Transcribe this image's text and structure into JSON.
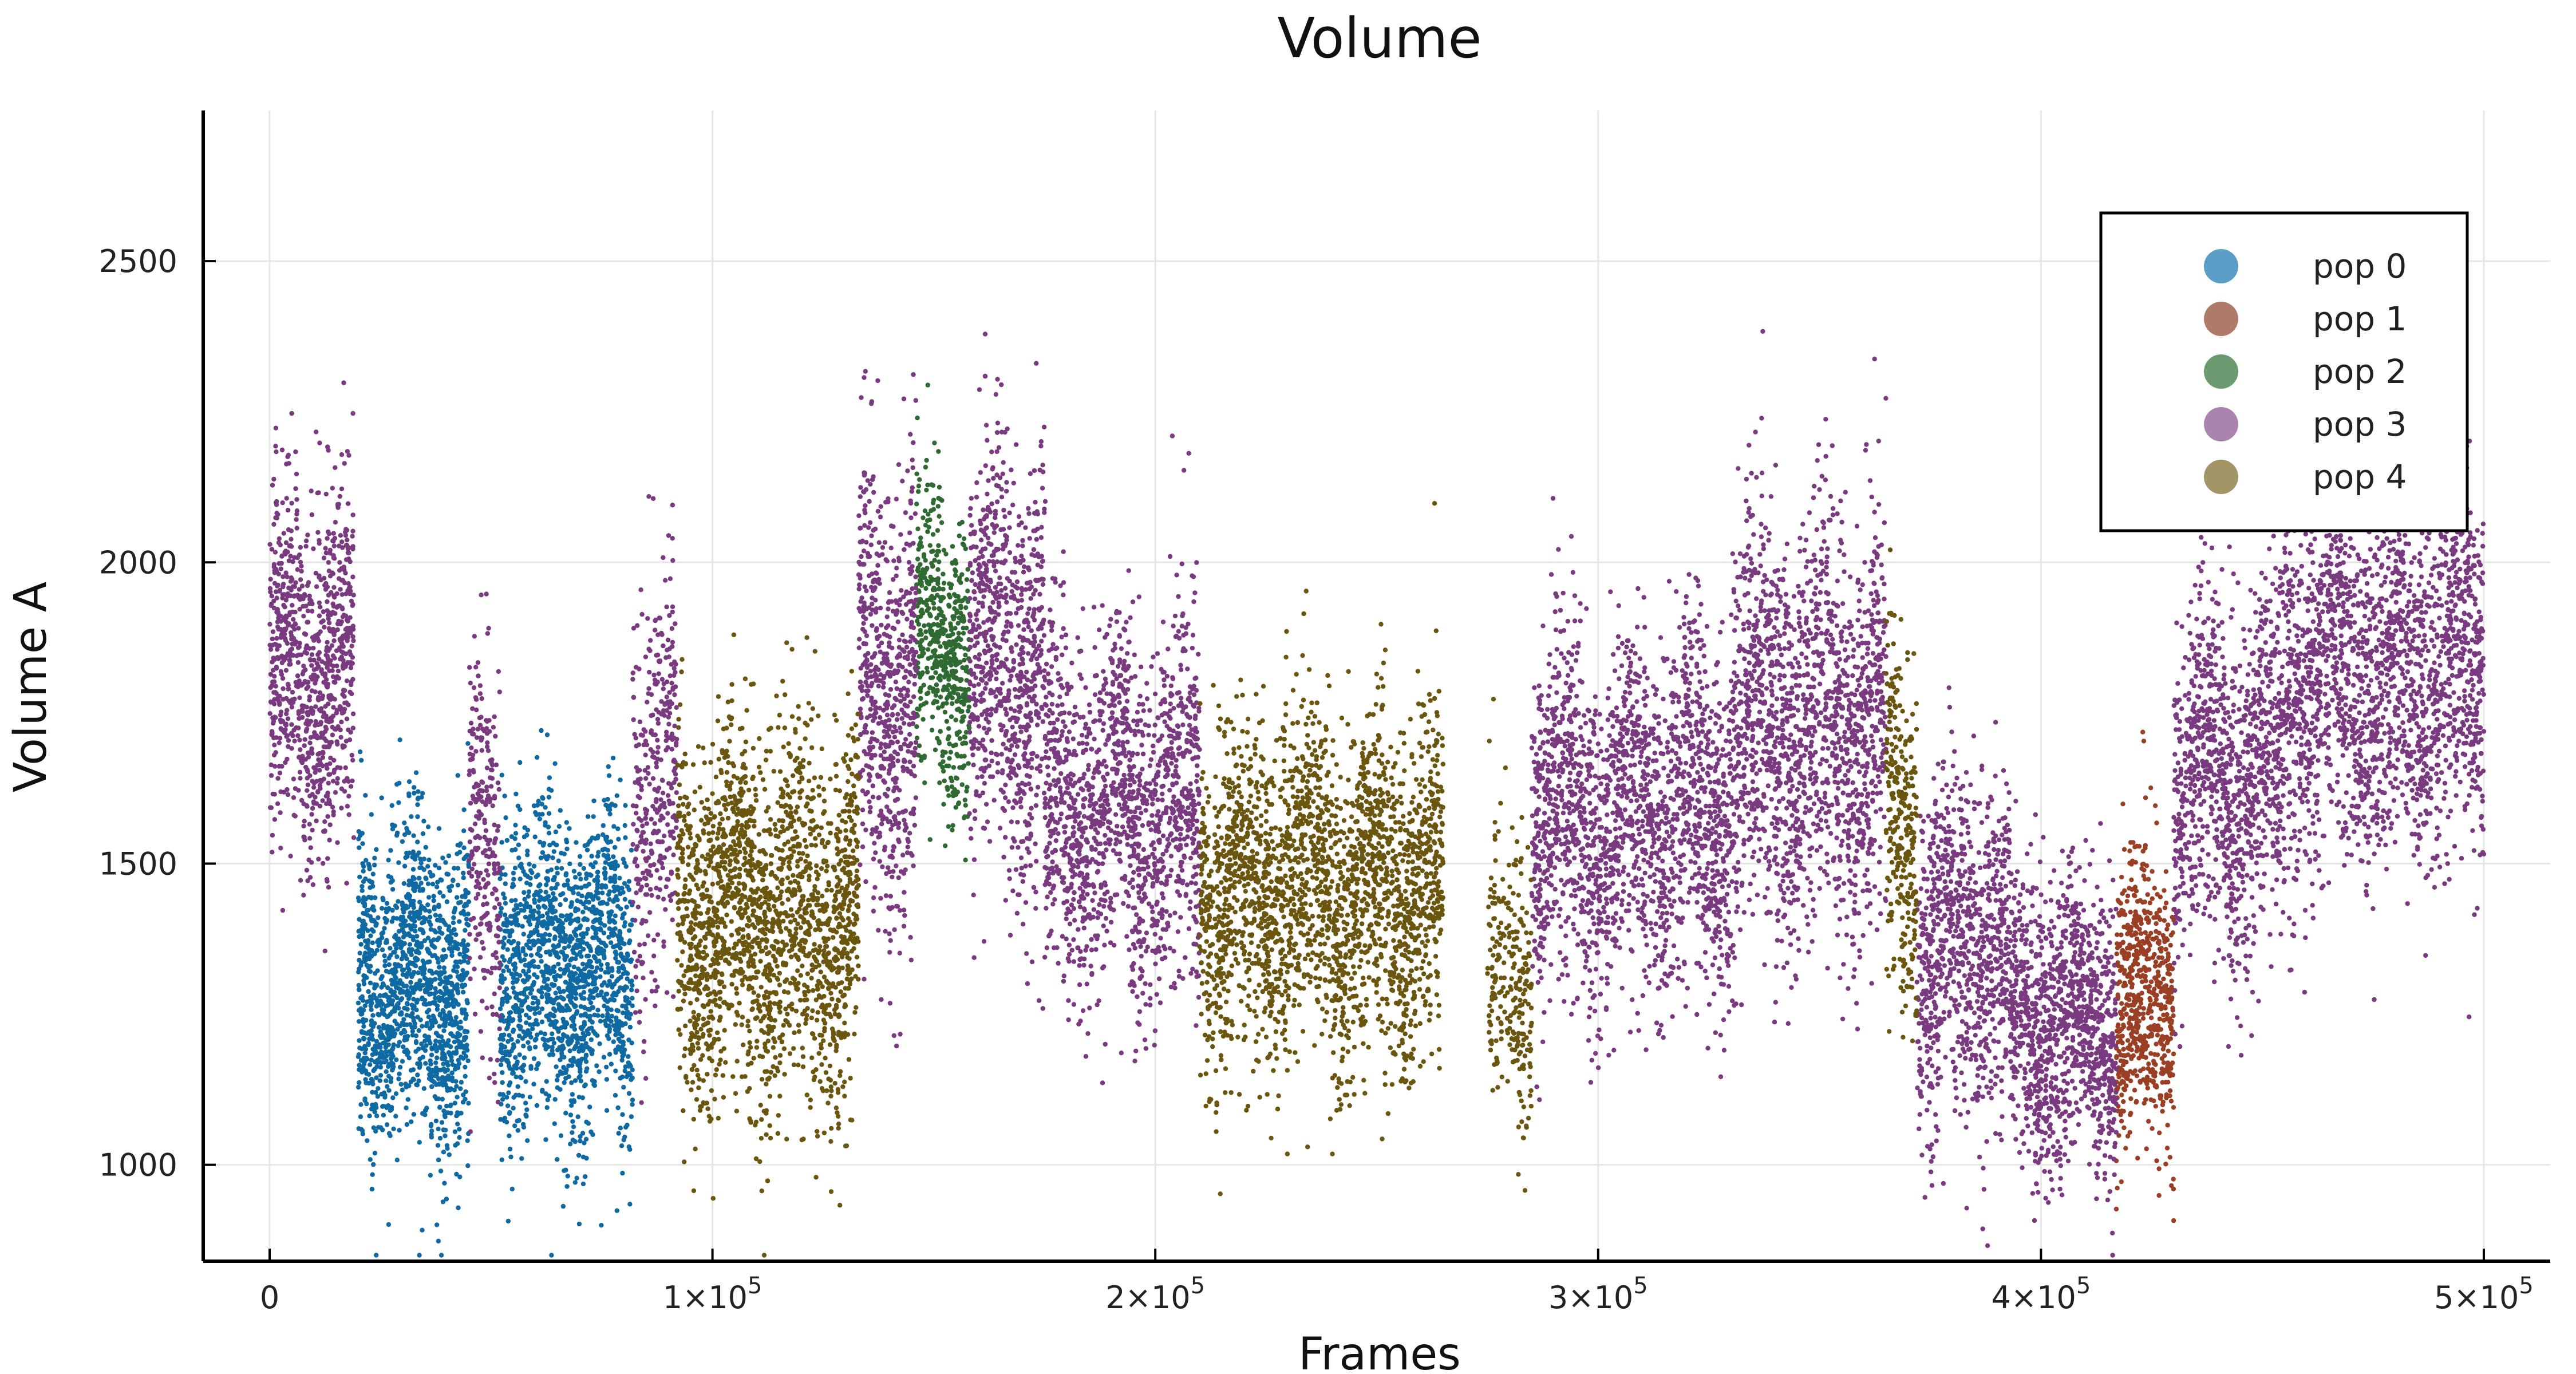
{
  "chart_data": {
    "type": "scatter",
    "title": "Volume",
    "xlabel": "Frames",
    "ylabel": "Volume A",
    "xlim": [
      -15000,
      515000
    ],
    "ylim": [
      840,
      2750
    ],
    "x_ticks": [
      {
        "value": 0,
        "label": "0"
      },
      {
        "value": 100000,
        "label": "1×10",
        "exp": "5"
      },
      {
        "value": 200000,
        "label": "2×10",
        "exp": "5"
      },
      {
        "value": 300000,
        "label": "3×10",
        "exp": "5"
      },
      {
        "value": 400000,
        "label": "4×10",
        "exp": "5"
      },
      {
        "value": 500000,
        "label": "5×10",
        "exp": "5"
      }
    ],
    "y_ticks": [
      {
        "value": 1000,
        "label": "1000"
      },
      {
        "value": 1500,
        "label": "1500"
      },
      {
        "value": 2000,
        "label": "2000"
      },
      {
        "value": 2500,
        "label": "2500"
      }
    ],
    "grid": true,
    "legend_position": "top-right",
    "series": [
      {
        "name": "pop 0",
        "color": "#0f6aa3",
        "legend_color": "#5a9ec8",
        "segments": [
          {
            "x0": 20000,
            "x1": 45000,
            "mean": 1300,
            "sd": 125,
            "n": 1400
          },
          {
            "x0": 52000,
            "x1": 82000,
            "mean": 1320,
            "sd": 130,
            "n": 1600
          }
        ]
      },
      {
        "name": "pop 1",
        "color": "#9a3e24",
        "legend_color": "#b07a68",
        "segments": [
          {
            "x0": 417000,
            "x1": 430000,
            "mean": 1260,
            "sd": 120,
            "n": 650
          }
        ]
      },
      {
        "name": "pop 2",
        "color": "#2f6a33",
        "legend_color": "#6a9a6e",
        "segments": [
          {
            "x0": 146000,
            "x1": 158000,
            "mean": 1860,
            "sd": 120,
            "n": 550
          }
        ]
      },
      {
        "name": "pop 3",
        "color": "#7a3a80",
        "legend_color": "#aa84ae",
        "segments": [
          {
            "x0": 0,
            "x1": 19000,
            "mean": 1820,
            "sd": 150,
            "n": 950
          },
          {
            "x0": 45000,
            "x1": 52000,
            "mean": 1500,
            "sd": 160,
            "n": 250
          },
          {
            "x0": 82000,
            "x1": 92000,
            "mean": 1620,
            "sd": 180,
            "n": 350
          },
          {
            "x0": 133000,
            "x1": 146000,
            "mean": 1800,
            "sd": 180,
            "n": 650
          },
          {
            "x0": 158000,
            "x1": 175000,
            "mean": 1850,
            "sd": 170,
            "n": 800
          },
          {
            "x0": 175000,
            "x1": 210000,
            "mean": 1590,
            "sd": 150,
            "n": 1500
          },
          {
            "x0": 285000,
            "x1": 330000,
            "mean": 1580,
            "sd": 140,
            "n": 1900
          },
          {
            "x0": 330000,
            "x1": 365000,
            "mean": 1720,
            "sd": 170,
            "n": 1600
          },
          {
            "x0": 372000,
            "x1": 393000,
            "mean": 1360,
            "sd": 140,
            "n": 900
          },
          {
            "x0": 393000,
            "x1": 417000,
            "mean": 1240,
            "sd": 120,
            "n": 1100
          },
          {
            "x0": 430000,
            "x1": 455000,
            "mean": 1650,
            "sd": 150,
            "n": 1100
          },
          {
            "x0": 455000,
            "x1": 500000,
            "mean": 1820,
            "sd": 160,
            "n": 2000
          }
        ]
      },
      {
        "name": "pop 4",
        "color": "#6b560f",
        "legend_color": "#a39566",
        "segments": [
          {
            "x0": 92000,
            "x1": 133000,
            "mean": 1420,
            "sd": 150,
            "n": 2000
          },
          {
            "x0": 210000,
            "x1": 265000,
            "mean": 1460,
            "sd": 140,
            "n": 2400
          },
          {
            "x0": 275000,
            "x1": 285000,
            "mean": 1300,
            "sd": 130,
            "n": 250
          },
          {
            "x0": 365000,
            "x1": 372000,
            "mean": 1560,
            "sd": 150,
            "n": 300
          }
        ]
      }
    ]
  }
}
